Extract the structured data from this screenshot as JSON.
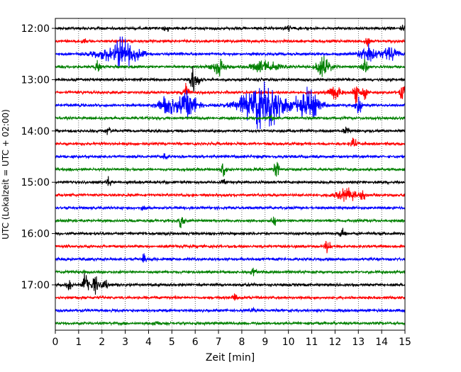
{
  "chart_data": {
    "type": "line",
    "subtype": "helicorder",
    "xlabel": "Zeit  [min]",
    "ylabel": "UTC (Lokalzeit = UTC + 02:00)",
    "xlim": [
      0,
      15
    ],
    "x_ticks": [
      "0",
      "1",
      "2",
      "3",
      "4",
      "5",
      "6",
      "7",
      "8",
      "9",
      "10",
      "11",
      "12",
      "13",
      "14",
      "15"
    ],
    "y_ticks": [
      {
        "label": "12:00",
        "row": 0
      },
      {
        "label": "13:00",
        "row": 4
      },
      {
        "label": "14:00",
        "row": 8
      },
      {
        "label": "15:00",
        "row": 12
      },
      {
        "label": "16:00",
        "row": 16
      },
      {
        "label": "17:00",
        "row": 20
      }
    ],
    "grid": "vertical dotted at each minute",
    "line_colors": [
      "#000000",
      "#ff0000",
      "#0000ff",
      "#008000"
    ],
    "traces": [
      {
        "start": "12:00",
        "events": [
          {
            "t": 4.8,
            "amp": 0.25
          },
          {
            "t": 10.0,
            "amp": 0.2
          },
          {
            "t": 14.9,
            "amp": 0.15
          }
        ]
      },
      {
        "start": "12:15",
        "events": [
          {
            "t": 1.2,
            "amp": 0.15
          },
          {
            "t": 13.4,
            "amp": 0.35
          }
        ]
      },
      {
        "start": "12:30",
        "events": [
          {
            "t": 2.3,
            "amp": 0.45,
            "width": 0.6
          },
          {
            "t": 2.9,
            "amp": 0.9,
            "width": 0.3
          },
          {
            "t": 3.4,
            "amp": 0.5,
            "width": 0.4
          },
          {
            "t": 13.5,
            "amp": 0.6,
            "width": 0.4
          },
          {
            "t": 14.4,
            "amp": 0.5,
            "width": 0.3
          }
        ]
      },
      {
        "start": "12:45",
        "events": [
          {
            "t": 1.8,
            "amp": 0.35
          },
          {
            "t": 7.0,
            "amp": 0.6,
            "width": 0.3
          },
          {
            "t": 9.0,
            "amp": 0.4,
            "width": 0.6
          },
          {
            "t": 11.5,
            "amp": 0.7,
            "width": 0.3
          },
          {
            "t": 13.3,
            "amp": 0.6
          }
        ]
      },
      {
        "start": "13:00",
        "events": [
          {
            "t": 5.9,
            "amp": 0.9
          },
          {
            "t": 6.1,
            "amp": 0.4
          }
        ]
      },
      {
        "start": "13:15",
        "events": [
          {
            "t": 5.6,
            "amp": 0.6
          },
          {
            "t": 12.0,
            "amp": 0.55,
            "width": 0.3
          },
          {
            "t": 12.9,
            "amp": 0.8
          },
          {
            "t": 13.3,
            "amp": 0.5
          },
          {
            "t": 14.9,
            "amp": 0.7
          }
        ]
      },
      {
        "start": "13:30",
        "events": [
          {
            "t": 4.8,
            "amp": 0.6,
            "width": 0.4
          },
          {
            "t": 5.7,
            "amp": 0.9,
            "width": 0.4
          },
          {
            "t": 8.9,
            "amp": 1.6,
            "width": 0.9
          },
          {
            "t": 10.8,
            "amp": 1.1,
            "width": 0.5
          },
          {
            "t": 13.0,
            "amp": 0.9
          }
        ]
      },
      {
        "start": "13:45",
        "events": [
          {
            "t": 9.3,
            "amp": 0.2
          }
        ]
      },
      {
        "start": "14:00",
        "events": [
          {
            "t": 2.3,
            "amp": 0.3
          },
          {
            "t": 12.5,
            "amp": 0.35
          }
        ]
      },
      {
        "start": "14:15",
        "events": [
          {
            "t": 12.8,
            "amp": 0.35
          }
        ]
      },
      {
        "start": "14:30",
        "events": [
          {
            "t": 4.7,
            "amp": 0.2
          }
        ]
      },
      {
        "start": "14:45",
        "events": [
          {
            "t": 7.2,
            "amp": 0.45
          },
          {
            "t": 9.5,
            "amp": 0.6
          }
        ]
      },
      {
        "start": "15:00",
        "events": [
          {
            "t": 2.3,
            "amp": 0.35
          },
          {
            "t": 7.2,
            "amp": 0.2
          }
        ]
      },
      {
        "start": "15:15",
        "events": [
          {
            "t": 12.5,
            "amp": 0.45,
            "width": 0.4
          },
          {
            "t": 13.2,
            "amp": 0.35
          }
        ]
      },
      {
        "start": "15:30",
        "events": [
          {
            "t": 3.8,
            "amp": 0.2
          }
        ]
      },
      {
        "start": "15:45",
        "events": [
          {
            "t": 5.4,
            "amp": 0.6
          },
          {
            "t": 9.4,
            "amp": 0.3
          }
        ]
      },
      {
        "start": "16:00",
        "events": [
          {
            "t": 12.3,
            "amp": 0.3
          }
        ]
      },
      {
        "start": "16:15",
        "events": [
          {
            "t": 11.7,
            "amp": 0.5
          }
        ]
      },
      {
        "start": "16:30",
        "events": [
          {
            "t": 3.8,
            "amp": 0.3
          }
        ]
      },
      {
        "start": "16:45",
        "events": [
          {
            "t": 8.5,
            "amp": 0.3
          }
        ]
      },
      {
        "start": "17:00",
        "events": [
          {
            "t": 0.6,
            "amp": 0.35
          },
          {
            "t": 1.3,
            "amp": 0.9
          },
          {
            "t": 1.7,
            "amp": 0.9
          },
          {
            "t": 2.1,
            "amp": 0.6
          }
        ]
      },
      {
        "start": "17:15",
        "events": [
          {
            "t": 7.7,
            "amp": 0.2
          }
        ]
      },
      {
        "start": "17:30",
        "events": [
          {
            "t": 8.5,
            "amp": 0.15
          }
        ]
      },
      {
        "start": "17:45",
        "events": [
          {
            "t": 4.3,
            "amp": 0.15
          }
        ]
      }
    ]
  }
}
